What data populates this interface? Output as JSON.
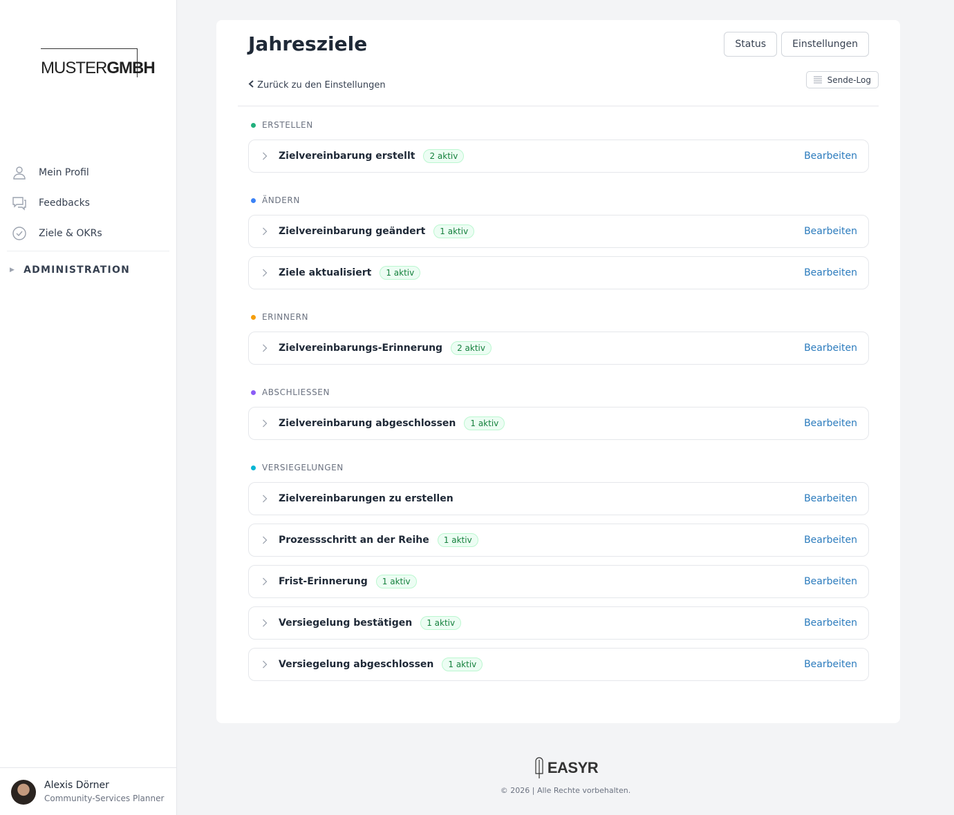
{
  "sidebar": {
    "logo": {
      "light": "MUSTER",
      "bold": "GMBH"
    },
    "nav": [
      "Mein Profil",
      "Feedbacks",
      "Ziele & OKRs"
    ],
    "section": "ADMINISTRATION",
    "user": {
      "name": "Alexis Dörner",
      "role": "Community-Services Planner"
    }
  },
  "header": {
    "title": "Jahresziele",
    "buttons": [
      "Status",
      "Einstellungen"
    ],
    "back_link": "Zurück zu den Einstellungen",
    "log_button": "Sende-Log"
  },
  "groups": [
    {
      "label": "ERSTELLEN",
      "color": "#22b07d",
      "items": [
        {
          "name": "Zielvereinbarung erstellt",
          "badge": "2 aktiv",
          "action": "Bearbeiten"
        }
      ]
    },
    {
      "label": "ÄNDERN",
      "color": "#3b82f6",
      "items": [
        {
          "name": "Zielvereinbarung geändert",
          "badge": "1 aktiv",
          "action": "Bearbeiten"
        },
        {
          "name": "Ziele aktualisiert",
          "badge": "1 aktiv",
          "action": "Bearbeiten"
        }
      ]
    },
    {
      "label": "ERINNERN",
      "color": "#f59e0b",
      "items": [
        {
          "name": "Zielvereinbarungs-Erinnerung",
          "badge": "2 aktiv",
          "action": "Bearbeiten"
        }
      ]
    },
    {
      "label": "ABSCHLIESSEN",
      "color": "#8b5cf6",
      "items": [
        {
          "name": "Zielvereinbarung abgeschlossen",
          "badge": "1 aktiv",
          "action": "Bearbeiten"
        }
      ]
    },
    {
      "label": "VERSIEGELUNGEN",
      "color": "#06b6d4",
      "items": [
        {
          "name": "Zielvereinbarungen zu erstellen",
          "action": "Bearbeiten"
        },
        {
          "name": "Prozessschritt an der Reihe",
          "badge": "1 aktiv",
          "action": "Bearbeiten"
        },
        {
          "name": "Frist-Erinnerung",
          "badge": "1 aktiv",
          "action": "Bearbeiten"
        },
        {
          "name": "Versiegelung bestätigen",
          "badge": "1 aktiv",
          "action": "Bearbeiten"
        },
        {
          "name": "Versiegelung abgeschlossen",
          "badge": "1 aktiv",
          "action": "Bearbeiten"
        }
      ]
    }
  ],
  "footer": {
    "brand": "EASYR",
    "copyright": "© 2026 | Alle Rechte vorbehalten."
  }
}
